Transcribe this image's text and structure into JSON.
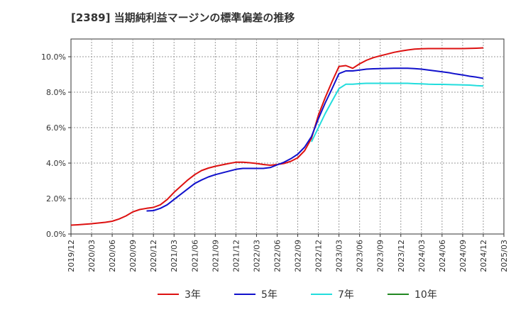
{
  "chart_data": {
    "type": "line",
    "title": "[2389]  当期純利益マージンの標準偏差の推移",
    "xlabel": "",
    "ylabel": "",
    "ylim": [
      0,
      11
    ],
    "yticks": [
      0,
      2,
      4,
      6,
      8,
      10
    ],
    "ytick_labels": [
      "0.0%",
      "2.0%",
      "4.0%",
      "6.0%",
      "8.0%",
      "10.0%"
    ],
    "x_start": "2019/12",
    "x_end": "2025/03",
    "x_tick_labels": [
      "2019/12",
      "2020/03",
      "2020/06",
      "2020/09",
      "2020/12",
      "2021/03",
      "2021/06",
      "2021/09",
      "2021/12",
      "2022/03",
      "2022/06",
      "2022/09",
      "2022/12",
      "2023/03",
      "2023/06",
      "2023/09",
      "2023/12",
      "2024/03",
      "2024/06",
      "2024/09",
      "2024/12",
      "2025/03"
    ],
    "grid": true,
    "legend_position": "bottom",
    "series": [
      {
        "name": "3年",
        "color": "#dd1111",
        "points": [
          [
            "2019/12",
            0.5
          ],
          [
            "2020/01",
            0.52
          ],
          [
            "2020/02",
            0.55
          ],
          [
            "2020/03",
            0.58
          ],
          [
            "2020/04",
            0.62
          ],
          [
            "2020/05",
            0.66
          ],
          [
            "2020/06",
            0.72
          ],
          [
            "2020/07",
            0.85
          ],
          [
            "2020/08",
            1.02
          ],
          [
            "2020/09",
            1.25
          ],
          [
            "2020/10",
            1.38
          ],
          [
            "2020/11",
            1.45
          ],
          [
            "2020/12",
            1.5
          ],
          [
            "2021/01",
            1.65
          ],
          [
            "2021/02",
            1.95
          ],
          [
            "2021/03",
            2.35
          ],
          [
            "2021/04",
            2.7
          ],
          [
            "2021/05",
            3.05
          ],
          [
            "2021/06",
            3.35
          ],
          [
            "2021/07",
            3.58
          ],
          [
            "2021/08",
            3.72
          ],
          [
            "2021/09",
            3.82
          ],
          [
            "2021/10",
            3.9
          ],
          [
            "2021/11",
            3.98
          ],
          [
            "2021/12",
            4.05
          ],
          [
            "2022/01",
            4.05
          ],
          [
            "2022/02",
            4.02
          ],
          [
            "2022/03",
            3.98
          ],
          [
            "2022/04",
            3.92
          ],
          [
            "2022/05",
            3.88
          ],
          [
            "2022/06",
            3.92
          ],
          [
            "2022/07",
            3.98
          ],
          [
            "2022/08",
            4.1
          ],
          [
            "2022/09",
            4.3
          ],
          [
            "2022/10",
            4.7
          ],
          [
            "2022/11",
            5.4
          ],
          [
            "2022/12",
            6.7
          ],
          [
            "2023/01",
            7.7
          ],
          [
            "2023/02",
            8.6
          ],
          [
            "2023/03",
            9.45
          ],
          [
            "2023/04",
            9.5
          ],
          [
            "2023/05",
            9.35
          ],
          [
            "2023/06",
            9.6
          ],
          [
            "2023/07",
            9.8
          ],
          [
            "2023/08",
            9.95
          ],
          [
            "2023/09",
            10.05
          ],
          [
            "2023/10",
            10.15
          ],
          [
            "2023/11",
            10.25
          ],
          [
            "2023/12",
            10.32
          ],
          [
            "2024/01",
            10.38
          ],
          [
            "2024/02",
            10.43
          ],
          [
            "2024/03",
            10.45
          ],
          [
            "2024/04",
            10.46
          ],
          [
            "2024/05",
            10.46
          ],
          [
            "2024/06",
            10.46
          ],
          [
            "2024/07",
            10.46
          ],
          [
            "2024/08",
            10.46
          ],
          [
            "2024/09",
            10.46
          ],
          [
            "2024/10",
            10.47
          ],
          [
            "2024/11",
            10.48
          ],
          [
            "2024/12",
            10.5
          ]
        ]
      },
      {
        "name": "5年",
        "color": "#1111cc",
        "points": [
          [
            "2020/11",
            1.3
          ],
          [
            "2020/12",
            1.32
          ],
          [
            "2021/01",
            1.45
          ],
          [
            "2021/02",
            1.65
          ],
          [
            "2021/03",
            1.95
          ],
          [
            "2021/04",
            2.25
          ],
          [
            "2021/05",
            2.55
          ],
          [
            "2021/06",
            2.85
          ],
          [
            "2021/07",
            3.05
          ],
          [
            "2021/08",
            3.22
          ],
          [
            "2021/09",
            3.35
          ],
          [
            "2021/10",
            3.45
          ],
          [
            "2021/11",
            3.55
          ],
          [
            "2021/12",
            3.65
          ],
          [
            "2022/01",
            3.7
          ],
          [
            "2022/02",
            3.7
          ],
          [
            "2022/03",
            3.7
          ],
          [
            "2022/04",
            3.7
          ],
          [
            "2022/05",
            3.75
          ],
          [
            "2022/06",
            3.9
          ],
          [
            "2022/07",
            4.05
          ],
          [
            "2022/08",
            4.25
          ],
          [
            "2022/09",
            4.5
          ],
          [
            "2022/10",
            4.9
          ],
          [
            "2022/11",
            5.5
          ],
          [
            "2022/12",
            6.5
          ],
          [
            "2023/01",
            7.4
          ],
          [
            "2023/02",
            8.2
          ],
          [
            "2023/03",
            9.05
          ],
          [
            "2023/04",
            9.2
          ],
          [
            "2023/05",
            9.2
          ],
          [
            "2023/06",
            9.25
          ],
          [
            "2023/07",
            9.3
          ],
          [
            "2023/08",
            9.32
          ],
          [
            "2023/09",
            9.33
          ],
          [
            "2023/10",
            9.34
          ],
          [
            "2023/11",
            9.35
          ],
          [
            "2023/12",
            9.35
          ],
          [
            "2024/01",
            9.35
          ],
          [
            "2024/02",
            9.33
          ],
          [
            "2024/03",
            9.3
          ],
          [
            "2024/04",
            9.25
          ],
          [
            "2024/05",
            9.2
          ],
          [
            "2024/06",
            9.15
          ],
          [
            "2024/07",
            9.1
          ],
          [
            "2024/08",
            9.03
          ],
          [
            "2024/09",
            8.97
          ],
          [
            "2024/10",
            8.9
          ],
          [
            "2024/11",
            8.85
          ],
          [
            "2024/12",
            8.78
          ]
        ]
      },
      {
        "name": "7年",
        "color": "#22dddd",
        "points": [
          [
            "2022/11",
            5.2
          ],
          [
            "2022/12",
            6.0
          ],
          [
            "2023/01",
            6.8
          ],
          [
            "2023/02",
            7.5
          ],
          [
            "2023/03",
            8.2
          ],
          [
            "2023/04",
            8.45
          ],
          [
            "2023/05",
            8.45
          ],
          [
            "2023/06",
            8.48
          ],
          [
            "2023/07",
            8.5
          ],
          [
            "2023/08",
            8.5
          ],
          [
            "2023/09",
            8.5
          ],
          [
            "2023/10",
            8.5
          ],
          [
            "2023/11",
            8.5
          ],
          [
            "2023/12",
            8.5
          ],
          [
            "2024/01",
            8.5
          ],
          [
            "2024/02",
            8.48
          ],
          [
            "2024/03",
            8.47
          ],
          [
            "2024/04",
            8.45
          ],
          [
            "2024/05",
            8.44
          ],
          [
            "2024/06",
            8.44
          ],
          [
            "2024/07",
            8.43
          ],
          [
            "2024/08",
            8.42
          ],
          [
            "2024/09",
            8.41
          ],
          [
            "2024/10",
            8.4
          ],
          [
            "2024/11",
            8.37
          ],
          [
            "2024/12",
            8.35
          ]
        ]
      },
      {
        "name": "10年",
        "color": "#228822",
        "points": []
      }
    ]
  }
}
